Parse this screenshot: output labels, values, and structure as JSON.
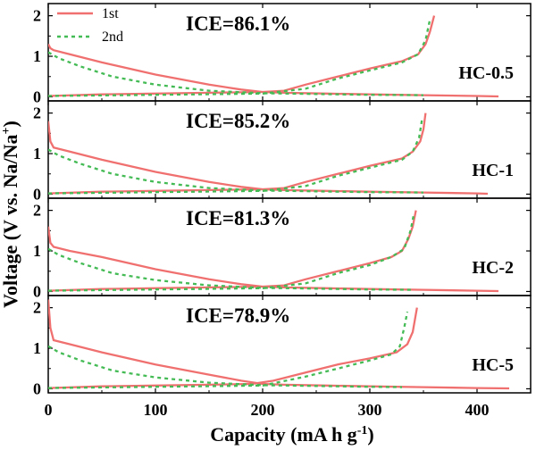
{
  "chart_data": {
    "type": "line",
    "xlabel": "Capacity (mA h g",
    "xlabel_sup": "-1",
    "xlabel_close": ")",
    "ylabel": "Voltage (V vs. Na/Na",
    "ylabel_sup": "+",
    "ylabel_close": ")",
    "xlim": [
      0,
      450
    ],
    "ylim": [
      -0.1,
      2.3
    ],
    "xticks": [
      "0",
      "100",
      "200",
      "300",
      "400"
    ],
    "xtick_values": [
      0,
      100,
      200,
      300,
      400
    ],
    "yticks": [
      "0",
      "1",
      "2"
    ],
    "ytick_values": [
      0,
      1,
      2
    ],
    "legend": {
      "position": "top-left",
      "entries": [
        "1st",
        "2nd"
      ]
    },
    "colors": {
      "first": "#f07070",
      "second": "#44bb55"
    },
    "panels": [
      {
        "name": "HC-0.5",
        "ice": "ICE=86.1%",
        "series": [
          {
            "name": "1st",
            "discharge": [
              [
                0,
                1.3
              ],
              [
                2,
                1.2
              ],
              [
                5,
                1.15
              ],
              [
                20,
                1.05
              ],
              [
                50,
                0.85
              ],
              [
                100,
                0.55
              ],
              [
                150,
                0.3
              ],
              [
                180,
                0.18
              ],
              [
                200,
                0.12
              ],
              [
                220,
                0.1
              ],
              [
                260,
                0.08
              ],
              [
                300,
                0.06
              ],
              [
                350,
                0.04
              ],
              [
                400,
                0.02
              ],
              [
                420,
                0.01
              ]
            ],
            "charge": [
              [
                0,
                0.02
              ],
              [
                50,
                0.06
              ],
              [
                100,
                0.08
              ],
              [
                150,
                0.1
              ],
              [
                200,
                0.12
              ],
              [
                220,
                0.15
              ],
              [
                240,
                0.3
              ],
              [
                270,
                0.5
              ],
              [
                300,
                0.7
              ],
              [
                330,
                0.88
              ],
              [
                345,
                1.05
              ],
              [
                352,
                1.3
              ],
              [
                356,
                1.6
              ],
              [
                360,
                2.0
              ]
            ]
          },
          {
            "name": "2nd",
            "discharge": [
              [
                0,
                1.1
              ],
              [
                10,
                0.95
              ],
              [
                30,
                0.75
              ],
              [
                60,
                0.5
              ],
              [
                100,
                0.3
              ],
              [
                150,
                0.15
              ],
              [
                200,
                0.09
              ],
              [
                250,
                0.07
              ],
              [
                300,
                0.05
              ],
              [
                350,
                0.04
              ]
            ],
            "charge": [
              [
                0,
                0.02
              ],
              [
                100,
                0.05
              ],
              [
                200,
                0.08
              ],
              [
                240,
                0.2
              ],
              [
                270,
                0.45
              ],
              [
                300,
                0.65
              ],
              [
                330,
                0.85
              ],
              [
                345,
                1.05
              ],
              [
                352,
                1.4
              ],
              [
                356,
                1.9
              ]
            ]
          }
        ]
      },
      {
        "name": "HC-1",
        "ice": "ICE=85.2%",
        "series": [
          {
            "name": "1st",
            "discharge": [
              [
                0,
                1.8
              ],
              [
                2,
                1.3
              ],
              [
                5,
                1.15
              ],
              [
                20,
                1.05
              ],
              [
                50,
                0.85
              ],
              [
                100,
                0.55
              ],
              [
                150,
                0.3
              ],
              [
                180,
                0.18
              ],
              [
                200,
                0.12
              ],
              [
                220,
                0.1
              ],
              [
                260,
                0.08
              ],
              [
                300,
                0.06
              ],
              [
                350,
                0.04
              ],
              [
                400,
                0.02
              ],
              [
                410,
                0.01
              ]
            ],
            "charge": [
              [
                0,
                0.02
              ],
              [
                50,
                0.06
              ],
              [
                100,
                0.08
              ],
              [
                150,
                0.1
              ],
              [
                200,
                0.12
              ],
              [
                220,
                0.15
              ],
              [
                240,
                0.3
              ],
              [
                270,
                0.5
              ],
              [
                300,
                0.7
              ],
              [
                330,
                0.88
              ],
              [
                340,
                1.05
              ],
              [
                347,
                1.3
              ],
              [
                350,
                1.6
              ],
              [
                352,
                2.0
              ]
            ]
          },
          {
            "name": "2nd",
            "discharge": [
              [
                0,
                1.1
              ],
              [
                10,
                0.95
              ],
              [
                30,
                0.75
              ],
              [
                60,
                0.5
              ],
              [
                100,
                0.3
              ],
              [
                150,
                0.15
              ],
              [
                200,
                0.09
              ],
              [
                250,
                0.07
              ],
              [
                300,
                0.05
              ],
              [
                350,
                0.04
              ]
            ],
            "charge": [
              [
                0,
                0.02
              ],
              [
                100,
                0.05
              ],
              [
                200,
                0.08
              ],
              [
                240,
                0.2
              ],
              [
                270,
                0.45
              ],
              [
                300,
                0.65
              ],
              [
                330,
                0.85
              ],
              [
                340,
                1.05
              ],
              [
                346,
                1.4
              ],
              [
                349,
                1.9
              ]
            ]
          }
        ]
      },
      {
        "name": "HC-2",
        "ice": "ICE=81.3%",
        "series": [
          {
            "name": "1st",
            "discharge": [
              [
                0,
                1.6
              ],
              [
                2,
                1.2
              ],
              [
                5,
                1.1
              ],
              [
                20,
                1.0
              ],
              [
                50,
                0.85
              ],
              [
                100,
                0.55
              ],
              [
                150,
                0.3
              ],
              [
                180,
                0.18
              ],
              [
                200,
                0.12
              ],
              [
                220,
                0.1
              ],
              [
                260,
                0.08
              ],
              [
                300,
                0.06
              ],
              [
                350,
                0.04
              ],
              [
                400,
                0.02
              ],
              [
                420,
                0.01
              ]
            ],
            "charge": [
              [
                0,
                0.02
              ],
              [
                50,
                0.06
              ],
              [
                100,
                0.08
              ],
              [
                150,
                0.1
              ],
              [
                200,
                0.12
              ],
              [
                220,
                0.15
              ],
              [
                240,
                0.3
              ],
              [
                270,
                0.5
              ],
              [
                300,
                0.7
              ],
              [
                320,
                0.85
              ],
              [
                330,
                1.0
              ],
              [
                336,
                1.3
              ],
              [
                340,
                1.6
              ],
              [
                343,
                2.0
              ]
            ]
          },
          {
            "name": "2nd",
            "discharge": [
              [
                0,
                1.05
              ],
              [
                10,
                0.9
              ],
              [
                30,
                0.7
              ],
              [
                60,
                0.45
              ],
              [
                100,
                0.28
              ],
              [
                150,
                0.15
              ],
              [
                200,
                0.09
              ],
              [
                250,
                0.07
              ],
              [
                300,
                0.05
              ],
              [
                340,
                0.04
              ]
            ],
            "charge": [
              [
                0,
                0.02
              ],
              [
                100,
                0.05
              ],
              [
                200,
                0.08
              ],
              [
                240,
                0.2
              ],
              [
                270,
                0.45
              ],
              [
                300,
                0.65
              ],
              [
                320,
                0.85
              ],
              [
                332,
                1.05
              ],
              [
                338,
                1.5
              ],
              [
                341,
                1.9
              ]
            ]
          }
        ]
      },
      {
        "name": "HC-5",
        "ice": "ICE=78.9%",
        "series": [
          {
            "name": "1st",
            "discharge": [
              [
                0,
                2.2
              ],
              [
                2,
                1.5
              ],
              [
                5,
                1.2
              ],
              [
                20,
                1.1
              ],
              [
                50,
                0.9
              ],
              [
                100,
                0.6
              ],
              [
                150,
                0.35
              ],
              [
                180,
                0.2
              ],
              [
                200,
                0.12
              ],
              [
                220,
                0.1
              ],
              [
                260,
                0.08
              ],
              [
                300,
                0.06
              ],
              [
                350,
                0.04
              ],
              [
                400,
                0.02
              ],
              [
                430,
                0.01
              ]
            ],
            "charge": [
              [
                0,
                0.02
              ],
              [
                50,
                0.06
              ],
              [
                100,
                0.08
              ],
              [
                150,
                0.1
              ],
              [
                190,
                0.12
              ],
              [
                210,
                0.2
              ],
              [
                240,
                0.4
              ],
              [
                270,
                0.6
              ],
              [
                300,
                0.75
              ],
              [
                325,
                0.9
              ],
              [
                335,
                1.1
              ],
              [
                340,
                1.4
              ],
              [
                342,
                1.7
              ],
              [
                344,
                2.0
              ]
            ]
          },
          {
            "name": "2nd",
            "discharge": [
              [
                0,
                1.05
              ],
              [
                10,
                0.9
              ],
              [
                30,
                0.7
              ],
              [
                60,
                0.45
              ],
              [
                100,
                0.28
              ],
              [
                150,
                0.15
              ],
              [
                200,
                0.09
              ],
              [
                250,
                0.07
              ],
              [
                300,
                0.05
              ],
              [
                330,
                0.04
              ]
            ],
            "charge": [
              [
                0,
                0.02
              ],
              [
                100,
                0.05
              ],
              [
                200,
                0.08
              ],
              [
                240,
                0.3
              ],
              [
                270,
                0.5
              ],
              [
                300,
                0.7
              ],
              [
                320,
                0.85
              ],
              [
                328,
                1.05
              ],
              [
                332,
                1.5
              ],
              [
                335,
                1.9
              ]
            ]
          }
        ]
      }
    ]
  }
}
